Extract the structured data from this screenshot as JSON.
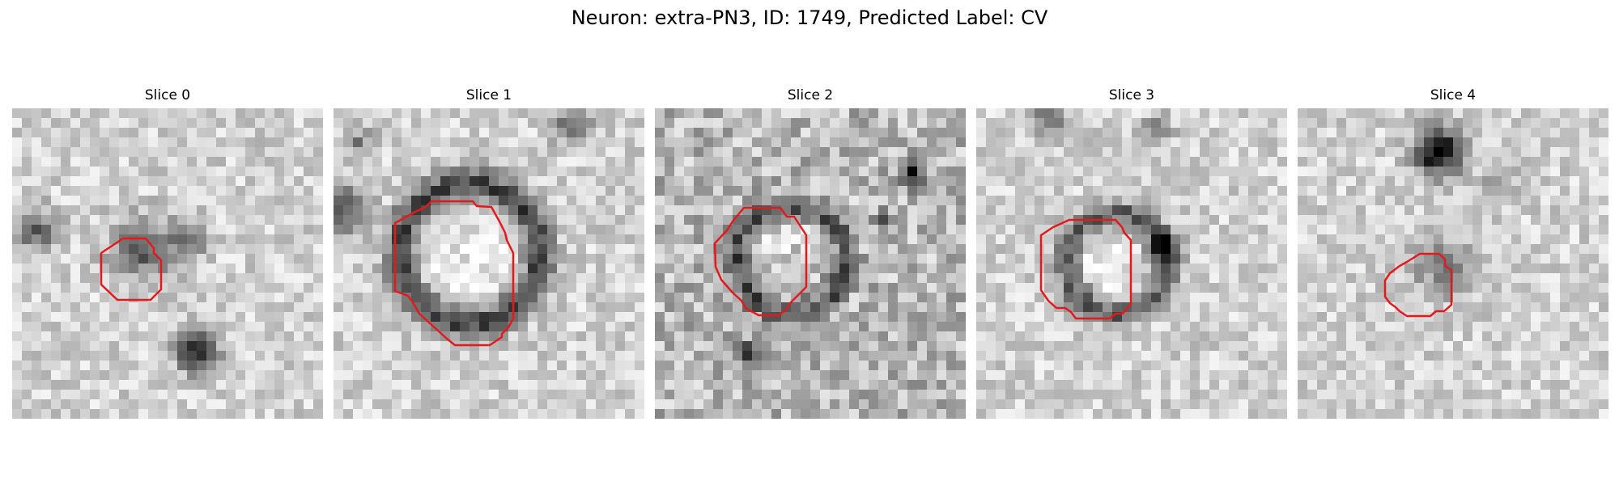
{
  "figure": {
    "title": "Neuron: extra-PN3, ID: 1749, Predicted Label: CV"
  },
  "panels": [
    {
      "title": "Slice 0",
      "seed": 11,
      "outline": "small-center-left"
    },
    {
      "title": "Slice 1",
      "seed": 23,
      "outline": "large-upper"
    },
    {
      "title": "Slice 2",
      "seed": 37,
      "outline": "large-center"
    },
    {
      "title": "Slice 3",
      "seed": 41,
      "outline": "large-center-right"
    },
    {
      "title": "Slice 4",
      "seed": 53,
      "outline": "small-center-right"
    }
  ],
  "colors": {
    "outline": "#e31a1c",
    "background": "#ffffff"
  },
  "grid_size": 32
}
